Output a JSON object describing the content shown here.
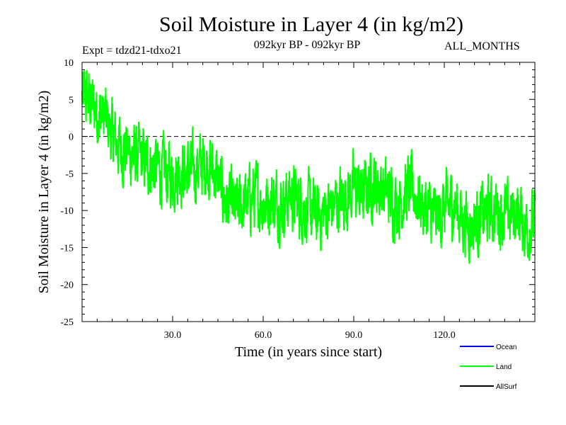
{
  "header": {
    "title": "Soil Moisture in Layer 4 (in kg/m2)",
    "experiment": "Expt = tdzd21-tdxo21",
    "period": "092kyr BP - 092kyr BP",
    "months": "ALL_MONTHS"
  },
  "chart_data": {
    "type": "line",
    "title": "Soil Moisture in Layer 4 (in kg/m2)",
    "xlabel": "Time (in years since start)",
    "ylabel": "Soil Moisture in Layer 4 (in kg/m2)",
    "xlim": [
      0,
      150
    ],
    "ylim": [
      -25,
      10
    ],
    "xticks": [
      30,
      60,
      90,
      120
    ],
    "xtick_labels": [
      "30.0",
      "60.0",
      "90.0",
      "120.0"
    ],
    "yticks": [
      10,
      5,
      0,
      -5,
      -10,
      -15,
      -20,
      -25
    ],
    "ytick_labels": [
      "10",
      "5",
      "0",
      "-5",
      "-10",
      "-15",
      "-20",
      "-25"
    ],
    "reference_line": 0,
    "legend": [
      {
        "name": "Ocean",
        "color": "#0000ff"
      },
      {
        "name": "Land",
        "color": "#00ff00"
      },
      {
        "name": "AllSurf",
        "color": "#000000"
      }
    ],
    "series": [
      {
        "name": "Land",
        "color": "#00ff00",
        "note": "approximate trend readout of a noisy monthly series",
        "x": [
          0,
          2,
          4,
          6,
          8,
          10,
          12,
          15,
          18,
          21,
          24,
          27,
          30,
          33,
          36,
          39,
          42,
          45,
          48,
          51,
          54,
          57,
          60,
          63,
          66,
          69,
          72,
          75,
          78,
          81,
          84,
          87,
          90,
          93,
          96,
          99,
          102,
          105,
          108,
          111,
          114,
          117,
          120,
          123,
          126,
          129,
          132,
          135,
          138,
          141,
          144,
          147,
          150
        ],
        "values": [
          5,
          5,
          4,
          3,
          2,
          0,
          -1,
          -2,
          -3,
          -3.5,
          -4,
          -5,
          -5,
          -4.5,
          -5,
          -4,
          -3.5,
          -6,
          -9,
          -10,
          -9,
          -8,
          -9,
          -8.5,
          -9,
          -8,
          -9,
          -10,
          -11,
          -10,
          -9,
          -8,
          -7,
          -8,
          -6,
          -7,
          -8,
          -9,
          -7,
          -8,
          -10,
          -11,
          -10,
          -9,
          -11,
          -12,
          -11,
          -10,
          -10,
          -11,
          -10,
          -12,
          -12
        ]
      }
    ]
  }
}
